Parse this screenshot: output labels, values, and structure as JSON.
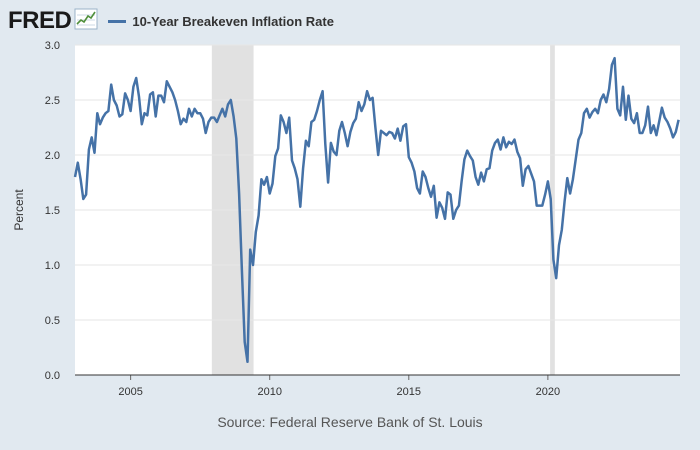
{
  "header": {
    "logo_text": "FRED",
    "logo_icon": "line-chart-icon",
    "series_name": "10-Year Breakeven Inflation Rate",
    "series_color": "#4572a7"
  },
  "source_text": "Source: Federal Reserve Bank of St. Louis",
  "colors": {
    "background": "#e1e9f0",
    "plot_background": "#ffffff",
    "recession": "#e1e1e1",
    "grid": "#e6e6e6",
    "axis": "#333333"
  },
  "chart_data": {
    "type": "line",
    "title": "10-Year Breakeven Inflation Rate",
    "xlabel": "",
    "ylabel": "Percent",
    "xlim": [
      2003.0,
      2024.75
    ],
    "ylim": [
      0.0,
      3.0
    ],
    "yticks": [
      {
        "value": 0.0,
        "label": "0.0"
      },
      {
        "value": 0.5,
        "label": "0.5"
      },
      {
        "value": 1.0,
        "label": "1.0"
      },
      {
        "value": 1.5,
        "label": "1.5"
      },
      {
        "value": 2.0,
        "label": "2.0"
      },
      {
        "value": 2.5,
        "label": "2.5"
      },
      {
        "value": 3.0,
        "label": "3.0"
      }
    ],
    "xticks": [
      {
        "value": 2005,
        "label": "2005"
      },
      {
        "value": 2010,
        "label": "2010"
      },
      {
        "value": 2015,
        "label": "2015"
      },
      {
        "value": 2020,
        "label": "2020"
      }
    ],
    "grid": true,
    "recessions": [
      {
        "start": 2007.92,
        "end": 2009.42
      },
      {
        "start": 2020.08,
        "end": 2020.25
      }
    ],
    "series": [
      {
        "name": "10-Year Breakeven Inflation Rate",
        "color": "#4572a7",
        "x": [
          2003.0,
          2003.1,
          2003.2,
          2003.3,
          2003.4,
          2003.5,
          2003.6,
          2003.7,
          2003.8,
          2003.9,
          2004.0,
          2004.1,
          2004.2,
          2004.3,
          2004.4,
          2004.5,
          2004.6,
          2004.7,
          2004.8,
          2004.9,
          2005.0,
          2005.1,
          2005.2,
          2005.3,
          2005.4,
          2005.5,
          2005.6,
          2005.7,
          2005.8,
          2005.9,
          2006.0,
          2006.1,
          2006.2,
          2006.3,
          2006.4,
          2006.5,
          2006.6,
          2006.7,
          2006.8,
          2006.9,
          2007.0,
          2007.1,
          2007.2,
          2007.3,
          2007.4,
          2007.5,
          2007.6,
          2007.7,
          2007.8,
          2007.9,
          2008.0,
          2008.1,
          2008.2,
          2008.3,
          2008.4,
          2008.5,
          2008.6,
          2008.7,
          2008.8,
          2008.9,
          2009.0,
          2009.1,
          2009.2,
          2009.3,
          2009.4,
          2009.5,
          2009.6,
          2009.7,
          2009.8,
          2009.9,
          2010.0,
          2010.1,
          2010.2,
          2010.3,
          2010.4,
          2010.5,
          2010.6,
          2010.7,
          2010.8,
          2010.9,
          2011.0,
          2011.1,
          2011.2,
          2011.3,
          2011.4,
          2011.5,
          2011.6,
          2011.7,
          2011.8,
          2011.9,
          2012.0,
          2012.1,
          2012.2,
          2012.3,
          2012.4,
          2012.5,
          2012.6,
          2012.7,
          2012.8,
          2012.9,
          2013.0,
          2013.1,
          2013.2,
          2013.3,
          2013.4,
          2013.5,
          2013.6,
          2013.7,
          2013.8,
          2013.9,
          2014.0,
          2014.1,
          2014.2,
          2014.3,
          2014.4,
          2014.5,
          2014.6,
          2014.7,
          2014.8,
          2014.9,
          2015.0,
          2015.1,
          2015.2,
          2015.3,
          2015.4,
          2015.5,
          2015.6,
          2015.7,
          2015.8,
          2015.9,
          2016.0,
          2016.1,
          2016.2,
          2016.3,
          2016.4,
          2016.5,
          2016.6,
          2016.7,
          2016.8,
          2016.9,
          2017.0,
          2017.1,
          2017.2,
          2017.3,
          2017.4,
          2017.5,
          2017.6,
          2017.7,
          2017.8,
          2017.9,
          2018.0,
          2018.1,
          2018.2,
          2018.3,
          2018.4,
          2018.5,
          2018.6,
          2018.7,
          2018.8,
          2018.9,
          2019.0,
          2019.1,
          2019.2,
          2019.3,
          2019.4,
          2019.5,
          2019.6,
          2019.7,
          2019.8,
          2019.9,
          2020.0,
          2020.1,
          2020.2,
          2020.3,
          2020.4,
          2020.5,
          2020.6,
          2020.7,
          2020.8,
          2020.9,
          2021.0,
          2021.1,
          2021.2,
          2021.3,
          2021.4,
          2021.5,
          2021.6,
          2021.7,
          2021.8,
          2021.9,
          2022.0,
          2022.1,
          2022.2,
          2022.3,
          2022.4,
          2022.5,
          2022.6,
          2022.7,
          2022.8,
          2022.9,
          2023.0,
          2023.1,
          2023.2,
          2023.3,
          2023.4,
          2023.5,
          2023.6,
          2023.7,
          2023.8,
          2023.9,
          2024.0,
          2024.1,
          2024.2,
          2024.3,
          2024.4,
          2024.5,
          2024.6,
          2024.7
        ],
        "y": [
          1.8,
          1.93,
          1.78,
          1.6,
          1.64,
          2.05,
          2.16,
          2.02,
          2.38,
          2.28,
          2.34,
          2.38,
          2.4,
          2.64,
          2.5,
          2.45,
          2.35,
          2.37,
          2.56,
          2.5,
          2.4,
          2.62,
          2.7,
          2.53,
          2.28,
          2.38,
          2.36,
          2.55,
          2.57,
          2.35,
          2.54,
          2.54,
          2.48,
          2.67,
          2.62,
          2.57,
          2.5,
          2.4,
          2.28,
          2.33,
          2.3,
          2.42,
          2.35,
          2.42,
          2.38,
          2.38,
          2.33,
          2.2,
          2.3,
          2.34,
          2.34,
          2.3,
          2.36,
          2.42,
          2.35,
          2.46,
          2.5,
          2.35,
          2.15,
          1.65,
          0.95,
          0.3,
          0.12,
          1.14,
          1.0,
          1.3,
          1.45,
          1.78,
          1.73,
          1.8,
          1.65,
          1.74,
          1.99,
          2.06,
          2.36,
          2.3,
          2.2,
          2.34,
          1.95,
          1.88,
          1.78,
          1.53,
          1.88,
          2.13,
          2.08,
          2.3,
          2.32,
          2.4,
          2.5,
          2.58,
          2.1,
          1.75,
          2.11,
          2.03,
          2.0,
          2.22,
          2.3,
          2.2,
          2.08,
          2.21,
          2.29,
          2.33,
          2.48,
          2.4,
          2.46,
          2.58,
          2.5,
          2.52,
          2.25,
          2.0,
          2.22,
          2.2,
          2.18,
          2.21,
          2.2,
          2.15,
          2.24,
          2.13,
          2.26,
          2.28,
          1.98,
          1.93,
          1.85,
          1.7,
          1.65,
          1.85,
          1.8,
          1.7,
          1.62,
          1.72,
          1.43,
          1.57,
          1.52,
          1.42,
          1.66,
          1.64,
          1.42,
          1.5,
          1.54,
          1.76,
          1.96,
          2.04,
          1.99,
          1.95,
          1.8,
          1.73,
          1.84,
          1.76,
          1.87,
          1.88,
          2.04,
          2.11,
          2.14,
          2.05,
          2.16,
          2.07,
          2.12,
          2.1,
          2.14,
          2.03,
          1.97,
          1.72,
          1.87,
          1.9,
          1.83,
          1.76,
          1.54,
          1.54,
          1.54,
          1.64,
          1.76,
          1.6,
          1.05,
          0.88,
          1.18,
          1.32,
          1.58,
          1.79,
          1.65,
          1.78,
          1.96,
          2.14,
          2.2,
          2.38,
          2.42,
          2.34,
          2.39,
          2.42,
          2.38,
          2.5,
          2.55,
          2.48,
          2.6,
          2.82,
          2.88,
          2.42,
          2.36,
          2.62,
          2.32,
          2.54,
          2.33,
          2.29,
          2.38,
          2.2,
          2.2,
          2.27,
          2.44,
          2.2,
          2.27,
          2.18,
          2.3,
          2.43,
          2.34,
          2.3,
          2.24,
          2.16,
          2.21,
          2.32
        ]
      }
    ]
  }
}
